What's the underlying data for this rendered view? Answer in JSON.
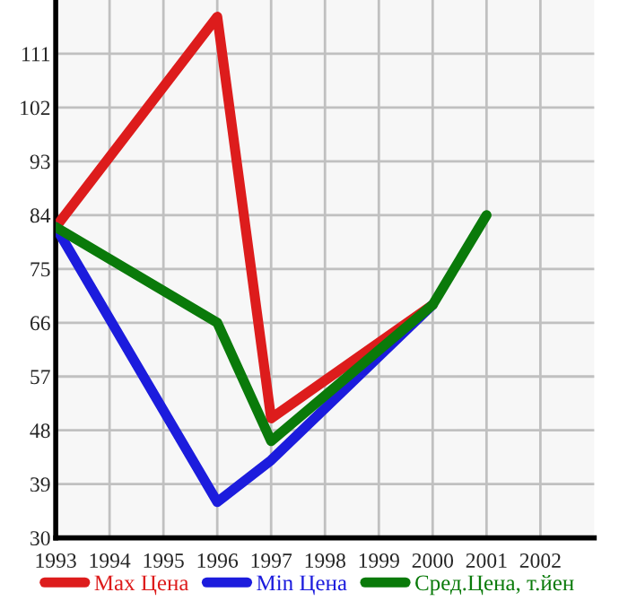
{
  "chart_data": {
    "type": "line",
    "x": [
      1993,
      1996,
      1997,
      2000,
      2001
    ],
    "series": [
      {
        "name": "Max Цена",
        "color": "#dd1c1c",
        "values": [
          82,
          117.2,
          50,
          69,
          null
        ]
      },
      {
        "name": "Min Цена",
        "color": "#1c1cdd",
        "values": [
          82,
          36,
          43,
          69,
          null
        ]
      },
      {
        "name": "Сред.Цена, т.йен",
        "color": "#0a7a0a",
        "values": [
          82,
          66,
          46.2,
          69,
          84
        ]
      }
    ],
    "xlim": [
      1993,
      2003
    ],
    "xticks": [
      1993,
      1994,
      1995,
      1996,
      1997,
      1998,
      1999,
      2000,
      2001,
      2002
    ],
    "ylim": [
      30,
      120
    ],
    "yticks": [
      30,
      39,
      48,
      57,
      66,
      75,
      84,
      93,
      102,
      111
    ],
    "grid": true,
    "legend": "bottom",
    "marker": "none",
    "line_style": "solid"
  }
}
